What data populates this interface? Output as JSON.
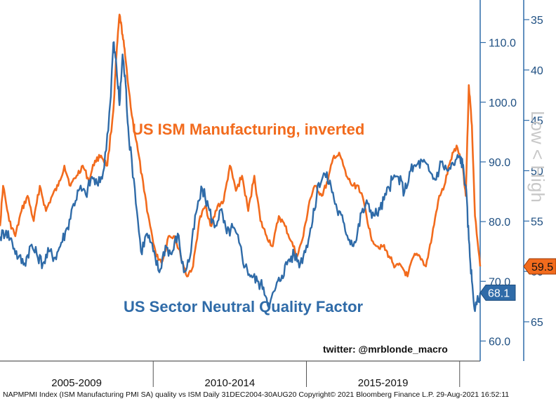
{
  "chart_data": {
    "type": "line",
    "title": "",
    "annotations": {
      "ism_title": "US ISM Manufacturing, inverted",
      "quality_title": "US Sector Neutral Quality Factor",
      "twitter": "twitter: @mrblonde_macro",
      "right_axis_label": "Low < High"
    },
    "x": {
      "range": [
        2005.0,
        2020.67
      ],
      "tick_labels": [
        "2005-2009",
        "2010-2014",
        "2015-2019"
      ],
      "tick_label_positions": [
        2007.5,
        2012.5,
        2017.5
      ],
      "separators": [
        2010.0,
        2015.0,
        2020.0
      ]
    },
    "left_axis": {
      "range": [
        57.0,
        115.0
      ],
      "ticks": [
        60.0,
        70.0,
        80.0,
        90.0,
        100.0,
        110.0
      ],
      "tick_labels": [
        "60.0",
        "70.0",
        "80.0",
        "90.0",
        "100.0",
        "110.0"
      ]
    },
    "right_axis": {
      "range": [
        35,
        65
      ],
      "inverted": true,
      "ticks": [
        35,
        40,
        45,
        50,
        55,
        60,
        65
      ],
      "tick_labels": [
        "35",
        "40",
        "45",
        "50",
        "55",
        "60",
        "65"
      ]
    },
    "series": [
      {
        "name": "US ISM Manufacturing, inverted",
        "axis": "right",
        "color": "#f26b1d",
        "last_value_label": "59.5",
        "x": [
          2005.0,
          2005.1,
          2005.3,
          2005.5,
          2005.7,
          2005.9,
          2006.1,
          2006.3,
          2006.5,
          2006.7,
          2006.9,
          2007.1,
          2007.3,
          2007.5,
          2007.7,
          2007.9,
          2008.1,
          2008.3,
          2008.5,
          2008.7,
          2008.8,
          2008.9,
          2009.0,
          2009.1,
          2009.3,
          2009.5,
          2009.7,
          2009.9,
          2010.1,
          2010.3,
          2010.5,
          2010.7,
          2010.9,
          2011.1,
          2011.3,
          2011.5,
          2011.7,
          2011.9,
          2012.1,
          2012.3,
          2012.5,
          2012.7,
          2012.9,
          2013.1,
          2013.3,
          2013.5,
          2013.7,
          2013.9,
          2014.1,
          2014.3,
          2014.5,
          2014.7,
          2014.9,
          2015.1,
          2015.3,
          2015.5,
          2015.7,
          2015.9,
          2016.1,
          2016.3,
          2016.5,
          2016.7,
          2016.9,
          2017.1,
          2017.3,
          2017.5,
          2017.7,
          2017.9,
          2018.1,
          2018.3,
          2018.5,
          2018.7,
          2018.9,
          2019.1,
          2019.3,
          2019.5,
          2019.7,
          2019.9,
          2020.1,
          2020.2,
          2020.3,
          2020.4,
          2020.5,
          2020.67
        ],
        "values": [
          55.5,
          51.5,
          55.0,
          56.5,
          54.0,
          52.5,
          55.0,
          51.5,
          54.0,
          52.5,
          51.5,
          49.5,
          51.5,
          50.5,
          49.5,
          51.0,
          49.0,
          48.5,
          49.5,
          44.0,
          38.5,
          34.5,
          36.5,
          39.0,
          44.5,
          48.0,
          52.0,
          55.5,
          58.5,
          59.0,
          56.5,
          56.5,
          58.5,
          60.5,
          59.5,
          55.0,
          53.5,
          55.5,
          53.5,
          53.0,
          49.5,
          52.0,
          50.5,
          54.0,
          50.5,
          55.0,
          56.5,
          57.5,
          54.5,
          55.5,
          57.0,
          58.5,
          56.5,
          53.0,
          51.5,
          52.5,
          51.0,
          48.5,
          48.5,
          50.5,
          51.5,
          51.5,
          53.5,
          56.5,
          57.5,
          57.5,
          58.5,
          59.5,
          59.5,
          60.5,
          58.5,
          58.5,
          59.5,
          56.5,
          53.0,
          51.5,
          49.0,
          47.5,
          49.5,
          52.5,
          41.5,
          45.5,
          54.5,
          59.5
        ]
      },
      {
        "name": "US Sector Neutral Quality Factor",
        "axis": "left",
        "color": "#2f6ba8",
        "last_value_label": "68.1",
        "x": [
          2005.0,
          2005.2,
          2005.4,
          2005.6,
          2005.8,
          2006.0,
          2006.2,
          2006.4,
          2006.6,
          2006.8,
          2007.0,
          2007.2,
          2007.4,
          2007.6,
          2007.8,
          2008.0,
          2008.2,
          2008.4,
          2008.6,
          2008.7,
          2008.8,
          2008.9,
          2009.0,
          2009.1,
          2009.2,
          2009.4,
          2009.6,
          2009.8,
          2010.0,
          2010.2,
          2010.4,
          2010.6,
          2010.8,
          2011.0,
          2011.2,
          2011.4,
          2011.6,
          2011.8,
          2012.0,
          2012.2,
          2012.4,
          2012.6,
          2012.8,
          2013.0,
          2013.2,
          2013.4,
          2013.6,
          2013.8,
          2014.0,
          2014.2,
          2014.4,
          2014.6,
          2014.8,
          2015.0,
          2015.2,
          2015.4,
          2015.6,
          2015.8,
          2016.0,
          2016.2,
          2016.4,
          2016.6,
          2016.8,
          2017.0,
          2017.2,
          2017.4,
          2017.6,
          2017.8,
          2018.0,
          2018.2,
          2018.4,
          2018.6,
          2018.8,
          2019.0,
          2019.2,
          2019.4,
          2019.6,
          2019.8,
          2020.0,
          2020.1,
          2020.2,
          2020.3,
          2020.4,
          2020.5,
          2020.67
        ],
        "values": [
          77.5,
          78.5,
          76.5,
          74.0,
          73.0,
          76.0,
          74.5,
          73.0,
          75.0,
          74.0,
          76.5,
          79.0,
          83.0,
          85.5,
          84.5,
          87.5,
          86.0,
          89.0,
          100.0,
          110.0,
          106.0,
          99.5,
          108.0,
          103.0,
          94.5,
          85.5,
          75.0,
          78.0,
          75.0,
          71.5,
          76.0,
          74.5,
          78.0,
          71.5,
          74.0,
          81.5,
          85.5,
          82.5,
          79.0,
          82.0,
          78.0,
          79.0,
          76.5,
          72.5,
          71.0,
          70.0,
          69.0,
          66.0,
          69.0,
          71.0,
          73.5,
          74.5,
          73.0,
          76.0,
          80.0,
          86.5,
          88.0,
          86.0,
          82.0,
          80.0,
          77.0,
          76.5,
          81.5,
          83.0,
          81.0,
          82.0,
          84.5,
          87.0,
          87.5,
          85.0,
          88.5,
          89.5,
          90.0,
          88.5,
          87.0,
          90.0,
          88.5,
          89.5,
          91.0,
          89.5,
          86.0,
          77.0,
          70.0,
          65.0,
          68.1
        ]
      }
    ],
    "source_text": "NAPMPMI Index (ISM Manufacturing PMI SA) quality vs ISM  Daily 31DEC2004-30AUG20 Copyright© 2021 Bloomberg Finance L.P. 29-Aug-2021 16:52:11",
    "colors": {
      "ism": "#f26b1d",
      "quality": "#2f6ba8",
      "axis": "#2f6ba8",
      "text": "#222222"
    }
  }
}
